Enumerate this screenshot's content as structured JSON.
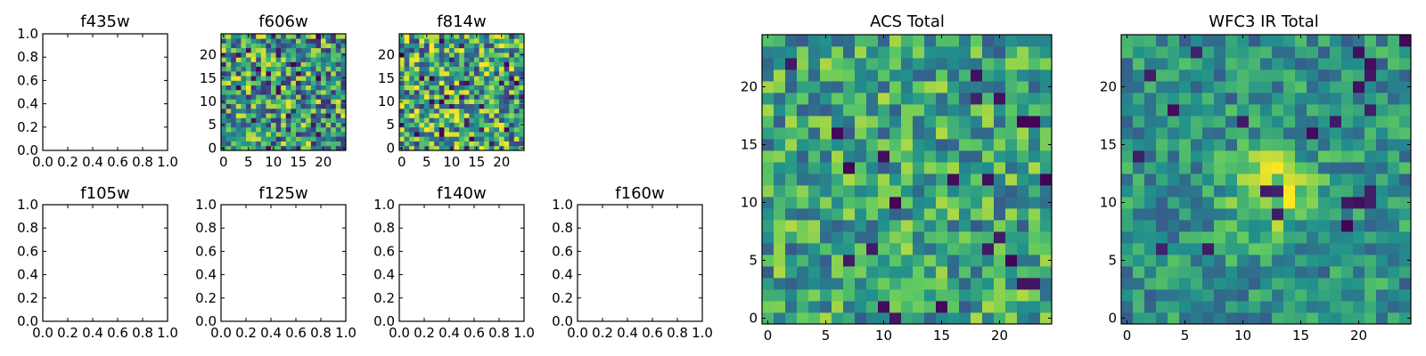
{
  "colormap": [
    "#440154",
    "#3b528b",
    "#21918c",
    "#5ec962",
    "#fde725"
  ],
  "chart_data": [
    {
      "type": "blank",
      "title": "f435w",
      "xlim": [
        0,
        1
      ],
      "ylim": [
        0,
        1
      ],
      "xticks": [
        "0.0",
        "0.2",
        "0.4",
        "0.6",
        "0.8",
        "1.0"
      ],
      "yticks": [
        "0.0",
        "0.2",
        "0.4",
        "0.6",
        "0.8",
        "1.0"
      ],
      "grid": false
    },
    {
      "type": "heatmap",
      "title": "f606w",
      "size": 25,
      "seed": 606,
      "bias": 0.56,
      "noise": 0.42,
      "xlim": [
        -0.5,
        24.5
      ],
      "ylim": [
        -0.5,
        24.5
      ],
      "xticks": [
        "0",
        "5",
        "10",
        "15",
        "20"
      ],
      "yticks": [
        "0",
        "5",
        "10",
        "15",
        "20"
      ],
      "grid": false
    },
    {
      "type": "heatmap",
      "title": "f814w",
      "size": 25,
      "seed": 814,
      "bias": 0.6,
      "noise": 0.42,
      "xlim": [
        -0.5,
        24.5
      ],
      "ylim": [
        -0.5,
        24.5
      ],
      "xticks": [
        "0",
        "5",
        "10",
        "15",
        "20"
      ],
      "yticks": [
        "0",
        "5",
        "10",
        "15",
        "20"
      ],
      "grid": false
    },
    {
      "type": "blank",
      "title": "f105w",
      "xlim": [
        0,
        1
      ],
      "ylim": [
        0,
        1
      ],
      "xticks": [
        "0.0",
        "0.2",
        "0.4",
        "0.6",
        "0.8",
        "1.0"
      ],
      "yticks": [
        "0.0",
        "0.2",
        "0.4",
        "0.6",
        "0.8",
        "1.0"
      ],
      "grid": false
    },
    {
      "type": "blank",
      "title": "f125w",
      "xlim": [
        0,
        1
      ],
      "ylim": [
        0,
        1
      ],
      "xticks": [
        "0.0",
        "0.2",
        "0.4",
        "0.6",
        "0.8",
        "1.0"
      ],
      "yticks": [
        "0.0",
        "0.2",
        "0.4",
        "0.6",
        "0.8",
        "1.0"
      ],
      "grid": false
    },
    {
      "type": "blank",
      "title": "f140w",
      "xlim": [
        0,
        1
      ],
      "ylim": [
        0,
        1
      ],
      "xticks": [
        "0.0",
        "0.2",
        "0.4",
        "0.6",
        "0.8",
        "1.0"
      ],
      "yticks": [
        "0.0",
        "0.2",
        "0.4",
        "0.6",
        "0.8",
        "1.0"
      ],
      "grid": false
    },
    {
      "type": "blank",
      "title": "f160w",
      "xlim": [
        0,
        1
      ],
      "ylim": [
        0,
        1
      ],
      "xticks": [
        "0.0",
        "0.2",
        "0.4",
        "0.6",
        "0.8",
        "1.0"
      ],
      "yticks": [
        "0.0",
        "0.2",
        "0.4",
        "0.6",
        "0.8",
        "1.0"
      ],
      "grid": false
    },
    {
      "type": "heatmap",
      "title": "ACS Total",
      "size": 25,
      "seed": 1001,
      "bias": 0.58,
      "noise": 0.3,
      "xlim": [
        -0.5,
        24.5
      ],
      "ylim": [
        -0.5,
        24.5
      ],
      "xticks": [
        "0",
        "5",
        "10",
        "15",
        "20"
      ],
      "yticks": [
        "0",
        "5",
        "10",
        "15",
        "20"
      ],
      "grid": false
    },
    {
      "type": "heatmap",
      "title": "WFC3 IR Total",
      "size": 25,
      "seed": 2002,
      "bias": 0.5,
      "noise": 0.22,
      "source_center": [
        12.5,
        11.0
      ],
      "source_amp": 0.4,
      "xlim": [
        -0.5,
        24.5
      ],
      "ylim": [
        -0.5,
        24.5
      ],
      "xticks": [
        "0",
        "5",
        "10",
        "15",
        "20"
      ],
      "yticks": [
        "0",
        "5",
        "10",
        "15",
        "20"
      ],
      "grid": false
    }
  ]
}
